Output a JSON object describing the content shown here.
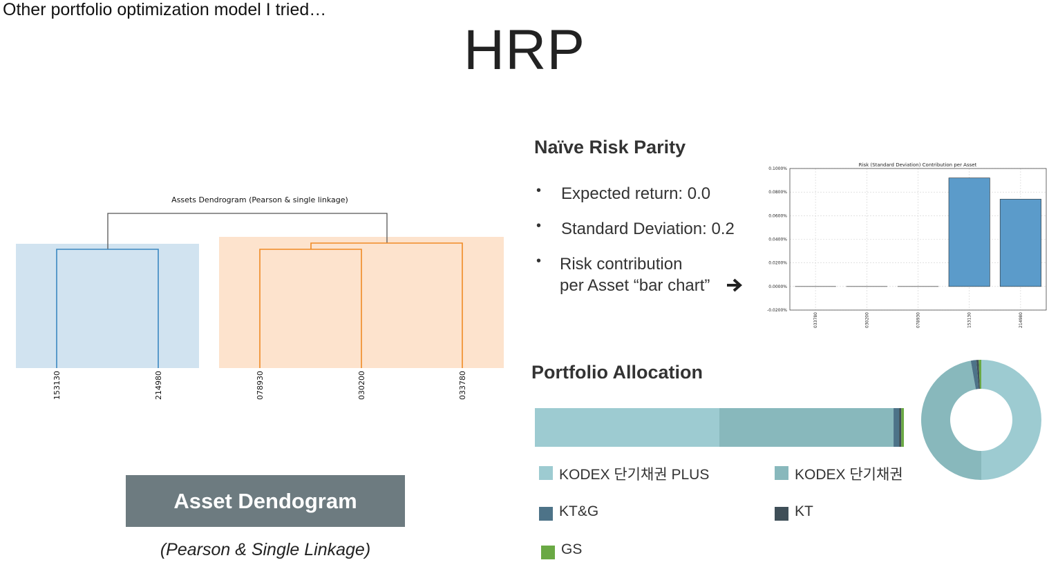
{
  "header": {
    "subtitle": "Other portfolio optimization model I tried…",
    "title": "HRP"
  },
  "dendrogram": {
    "title": "Assets Dendrogram (Pearson & single linkage)",
    "leaves": [
      "153130",
      "214980",
      "078930",
      "030200",
      "033780"
    ],
    "label_box": "Asset Dendogram",
    "caption": "(Pearson & Single Linkage)",
    "colors": {
      "blue": "#3a87c0",
      "blue_bg": "#d1e3f0",
      "orange": "#f08a24",
      "orange_bg": "#fde3cd",
      "gray": "#555555"
    }
  },
  "naive_risk_parity": {
    "heading": "Naïve Risk Parity",
    "bullets": [
      {
        "lines": [
          "Expected return: 0.0"
        ]
      },
      {
        "lines": [
          "Standard Deviation: 0.2"
        ]
      },
      {
        "lines": [
          "Risk contribution",
          "per Asset “bar chart”"
        ]
      }
    ],
    "arrow_icon": "arrow-right-icon"
  },
  "chart_data": {
    "type": "bar",
    "title": "Risk (Standard Deviation) Contribution per Asset",
    "categories": [
      "033780",
      "030200",
      "078930",
      "153130",
      "214980"
    ],
    "values": [
      0.0,
      0.0,
      0.0,
      0.092,
      0.074
    ],
    "ylim": [
      -0.02,
      0.1
    ],
    "yticks": [
      "0.1000%",
      "0.0800%",
      "0.0600%",
      "0.0400%",
      "0.0200%",
      "0.0000%",
      "-0.0200%"
    ],
    "ytick_values": [
      0.1,
      0.08,
      0.06,
      0.04,
      0.02,
      0.0,
      -0.02
    ],
    "grid": true,
    "bar_color": "#5b9bca"
  },
  "portfolio_allocation": {
    "heading": "Portfolio Allocation",
    "segments": [
      {
        "name": "KODEX 단기채권 PLUS",
        "share": 0.5,
        "color": "#9dcbd1"
      },
      {
        "name": "KODEX 단기채권",
        "share": 0.472,
        "color": "#88b8bc"
      },
      {
        "name": "KT&G",
        "share": 0.015,
        "color": "#4d7388"
      },
      {
        "name": "KT",
        "share": 0.006,
        "color": "#3f4f58"
      },
      {
        "name": "GS",
        "share": 0.007,
        "color": "#6aa944"
      }
    ]
  }
}
